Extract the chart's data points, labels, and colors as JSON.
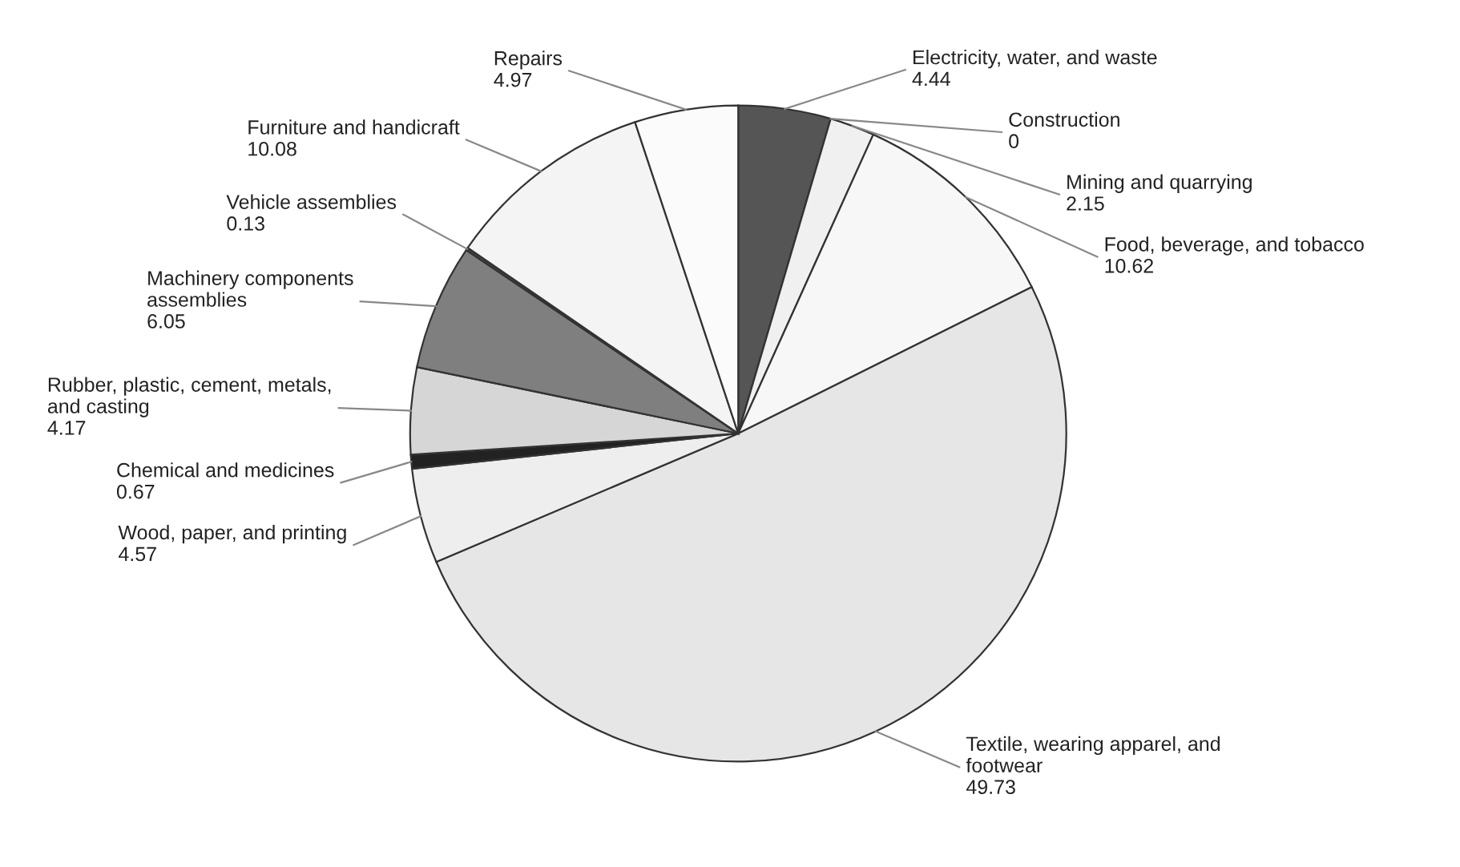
{
  "chart_data": {
    "type": "pie",
    "categories": [
      "Electricity, water, and waste",
      "Construction",
      "Mining and quarrying",
      "Food, beverage, and tobacco",
      "Textile, wearing apparel, and\nfootwear",
      "Wood, paper, and printing",
      "Chemical and medicines",
      "Rubber, plastic, cement, metals,\nand casting",
      "Machinery components\nassemblies",
      "Vehicle assemblies",
      "Furniture and handicraft",
      "Repairs"
    ],
    "values": [
      4.44,
      0,
      2.15,
      10.62,
      49.73,
      4.57,
      0.67,
      4.17,
      6.05,
      0.13,
      10.08,
      4.97
    ],
    "colors": [
      "#555555",
      "#ffffff",
      "#f0f0f0",
      "#f7f7f7",
      "#e6e6e6",
      "#eeeeee",
      "#222222",
      "#d6d6d6",
      "#7f7f7f",
      "#444444",
      "#f4f4f4",
      "#fbfbfb"
    ],
    "value_labels": [
      "4.44",
      "0",
      "2.15",
      "10.62",
      "49.73",
      "4.57",
      "0.67",
      "4.17",
      "6.05",
      "0.13",
      "10.08",
      "4.97"
    ]
  }
}
